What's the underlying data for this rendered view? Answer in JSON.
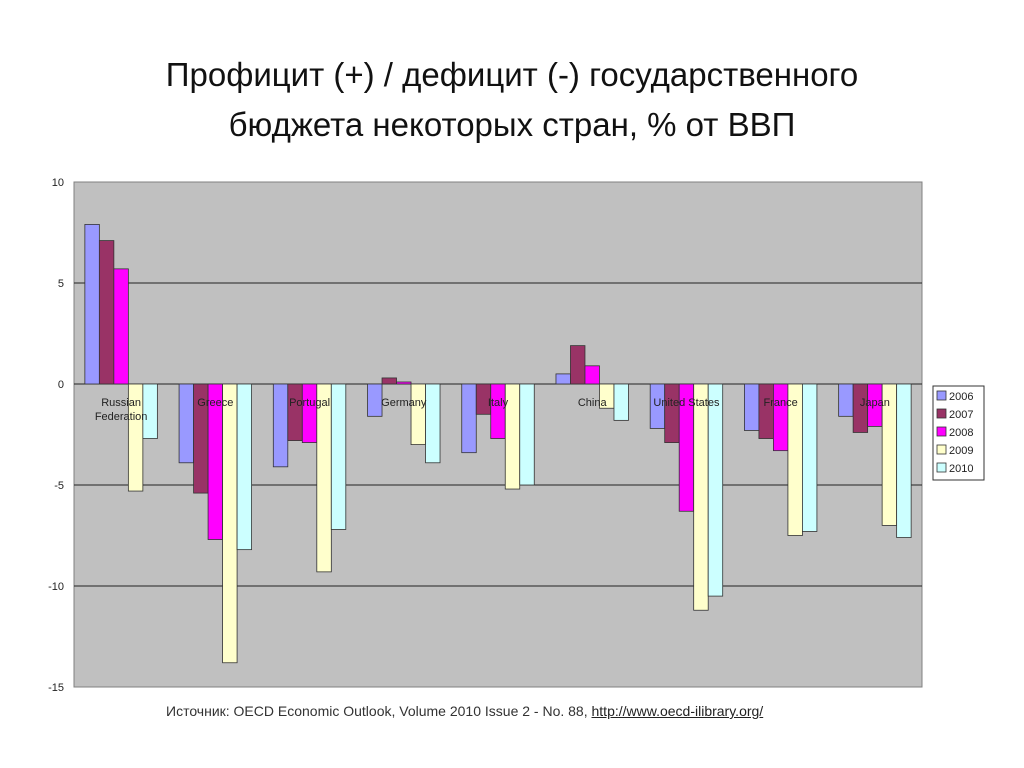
{
  "slide": {
    "title_line1": "Профицит (+) / дефицит (-) государственного",
    "title_line2": "бюджета некоторых стран, % от ВВП"
  },
  "source": {
    "text": "Источник: OECD Economic Outlook, Volume 2010 Issue 2 - No. 88, ",
    "link": "http://www.oecd-ilibrary.org/"
  },
  "chart_data": {
    "type": "bar",
    "title": "",
    "xlabel": "",
    "ylabel": "",
    "ylim": [
      -15,
      10
    ],
    "yticks": [
      10,
      5,
      0,
      -5,
      -10,
      -15
    ],
    "grid": true,
    "legend_position": "right",
    "categories": [
      [
        "Russian",
        "Federation"
      ],
      [
        "Greece"
      ],
      [
        "Portugal"
      ],
      [
        "Germany"
      ],
      [
        "Italy"
      ],
      [
        "China"
      ],
      [
        "United States"
      ],
      [
        "France"
      ],
      [
        "Japan"
      ]
    ],
    "series": [
      {
        "name": "2006",
        "color": "#9999ff",
        "values": [
          7.9,
          -3.9,
          -4.1,
          -1.6,
          -3.4,
          0.5,
          -2.2,
          -2.3,
          -1.6
        ]
      },
      {
        "name": "2007",
        "color": "#993366",
        "values": [
          7.1,
          -5.4,
          -2.8,
          0.3,
          -1.5,
          1.9,
          -2.9,
          -2.7,
          -2.4
        ]
      },
      {
        "name": "2008",
        "color": "#ff00ff",
        "values": [
          5.7,
          -7.7,
          -2.9,
          0.1,
          -2.7,
          0.9,
          -6.3,
          -3.3,
          -2.1
        ]
      },
      {
        "name": "2009",
        "color": "#ffffcc",
        "values": [
          -5.3,
          -13.8,
          -9.3,
          -3.0,
          -5.2,
          -1.2,
          -11.2,
          -7.5,
          -7.0
        ]
      },
      {
        "name": "2010",
        "color": "#ccffff",
        "values": [
          -2.7,
          -8.2,
          -7.2,
          -3.9,
          -5.0,
          -1.8,
          -10.5,
          -7.3,
          -7.6
        ]
      }
    ]
  }
}
